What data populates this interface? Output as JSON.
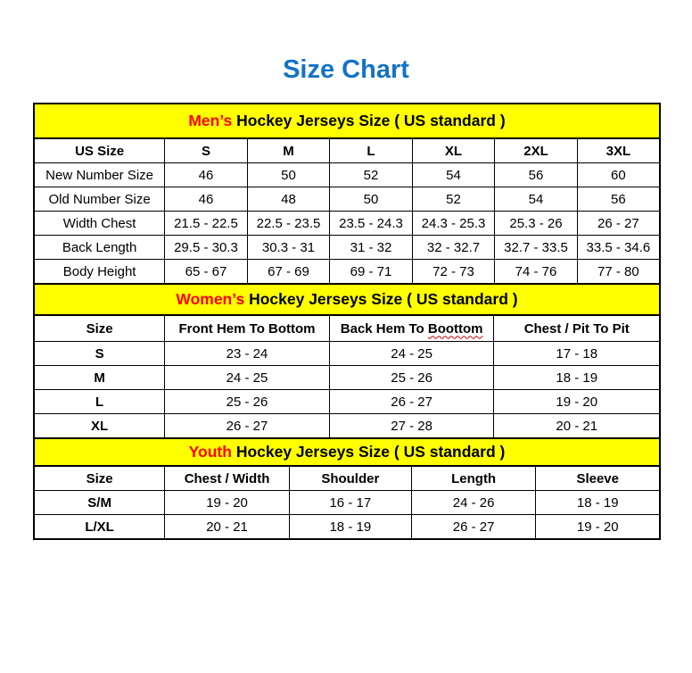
{
  "page": {
    "title": "Size Chart",
    "title_color": "#1373c5",
    "band_color": "#ffff00",
    "accent_color": "#ff0000",
    "squiggle_color": "#cc0000"
  },
  "men": {
    "band": {
      "highlight": "Men’s",
      "rest": "Hockey Jerseys Size ( US standard )"
    },
    "headers": [
      "US Size",
      "S",
      "M",
      "L",
      "XL",
      "2XL",
      "3XL"
    ],
    "rows": [
      [
        "New Number Size",
        "46",
        "50",
        "52",
        "54",
        "56",
        "60"
      ],
      [
        "Old Number Size",
        "46",
        "48",
        "50",
        "52",
        "54",
        "56"
      ],
      [
        "Width Chest",
        "21.5 - 22.5",
        "22.5 - 23.5",
        "23.5 - 24.3",
        "24.3 - 25.3",
        "25.3 - 26",
        "26 - 27"
      ],
      [
        "Back Length",
        "29.5 - 30.3",
        "30.3 - 31",
        "31 - 32",
        "32 - 32.7",
        "32.7 - 33.5",
        "33.5 - 34.6"
      ],
      [
        "Body Height",
        "65 - 67",
        "67 - 69",
        "69 - 71",
        "72 - 73",
        "74 - 76",
        "77 - 80"
      ]
    ]
  },
  "women": {
    "band": {
      "highlight": "Women’s",
      "rest": "Hockey Jerseys Size ( US standard )"
    },
    "header_size": "Size",
    "header_front_hem": "Front Hem To Bottom",
    "header_back_hem_prefix": "Back Hem To",
    "header_back_hem_word": "Boottom",
    "header_chest": "Chest / Pit To Pit",
    "rows": [
      [
        "S",
        "23 - 24",
        "24 - 25",
        "17 - 18"
      ],
      [
        "M",
        "24 - 25",
        "25 - 26",
        "18 - 19"
      ],
      [
        "L",
        "25 - 26",
        "26 - 27",
        "19 - 20"
      ],
      [
        "XL",
        "26 - 27",
        "27 - 28",
        "20 - 21"
      ]
    ]
  },
  "youth": {
    "band": {
      "highlight": "Youth",
      "rest": "Hockey Jerseys Size ( US standard )"
    },
    "headers": [
      "Size",
      "Chest / Width",
      "Shoulder",
      "Length",
      "Sleeve"
    ],
    "rows": [
      [
        "S/M",
        "19 - 20",
        "16 - 17",
        "24 - 26",
        "18 - 19"
      ],
      [
        "L/XL",
        "20 - 21",
        "18 - 19",
        "26 - 27",
        "19 - 20"
      ]
    ]
  }
}
